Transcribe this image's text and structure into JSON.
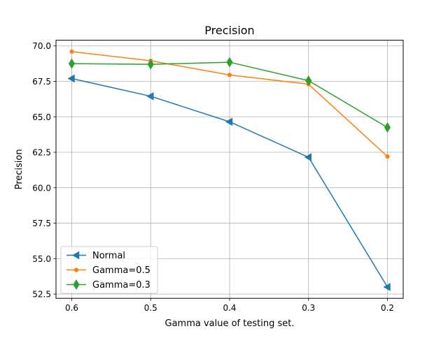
{
  "chart_data": {
    "type": "line",
    "title": "Precision",
    "xlabel": "Gamma value of testing set.",
    "ylabel": "Precision",
    "categories": [
      "0.6",
      "0.5",
      "0.4",
      "0.3",
      "0.2"
    ],
    "xticks": [
      "0.6",
      "0.5",
      "0.4",
      "0.3",
      "0.2"
    ],
    "yticks": [
      "52.5",
      "55.0",
      "57.5",
      "60.0",
      "62.5",
      "65.0",
      "67.5",
      "70.0"
    ],
    "ytick_values": [
      52.5,
      55.0,
      57.5,
      60.0,
      62.5,
      65.0,
      67.5,
      70.0
    ],
    "ylim": [
      52.2,
      70.4
    ],
    "grid": true,
    "legend_position": "lower-left",
    "series": [
      {
        "name": "Normal",
        "color": "#1f77b4",
        "marker": "triangle-left",
        "values": [
          67.7,
          66.45,
          64.65,
          62.15,
          53.0
        ]
      },
      {
        "name": "Gamma=0.5",
        "color": "#ff7f0e",
        "marker": "point",
        "values": [
          69.6,
          68.95,
          67.95,
          67.3,
          62.2
        ]
      },
      {
        "name": "Gamma=0.3",
        "color": "#2ca02c",
        "marker": "thin-diamond",
        "values": [
          68.75,
          68.7,
          68.85,
          67.55,
          64.25
        ]
      }
    ]
  }
}
